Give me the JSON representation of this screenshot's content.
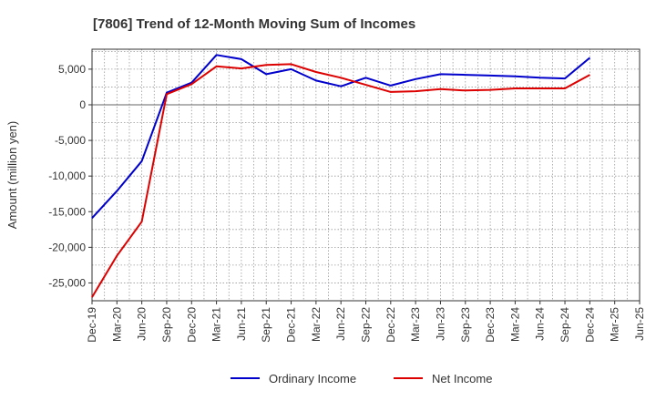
{
  "chart_data": {
    "type": "line",
    "title": "[7806]  Trend of 12-Month Moving Sum of Incomes",
    "xlabel": "",
    "ylabel": "Amount (million yen)",
    "ylim": [
      -27500,
      7800
    ],
    "yticks": [
      5000,
      0,
      -5000,
      -10000,
      -15000,
      -20000,
      -25000
    ],
    "ytick_labels": [
      "5,000",
      "0",
      "-5,000",
      "-10,000",
      "-15,000",
      "-20,000",
      "-25,000"
    ],
    "categories": [
      "Dec-19",
      "Mar-20",
      "Jun-20",
      "Sep-20",
      "Dec-20",
      "Mar-21",
      "Jun-21",
      "Sep-21",
      "Dec-21",
      "Mar-22",
      "Jun-22",
      "Sep-22",
      "Dec-22",
      "Mar-23",
      "Jun-23",
      "Sep-23",
      "Dec-23",
      "Mar-24",
      "Jun-24",
      "Sep-24",
      "Dec-24",
      "Mar-25",
      "Jun-25"
    ],
    "grid": true,
    "legend_position": "bottom",
    "series": [
      {
        "name": "Ordinary Income",
        "color": "#0000cc",
        "values": [
          -15900,
          -12100,
          -7900,
          1700,
          3100,
          7000,
          6400,
          4300,
          5000,
          3400,
          2600,
          3800,
          2700,
          3600,
          4300,
          4200,
          4100,
          4000,
          3800,
          3700,
          6600,
          null,
          null
        ]
      },
      {
        "name": "Net Income",
        "color": "#dd0000",
        "values": [
          -27000,
          -21200,
          -16400,
          1500,
          2900,
          5400,
          5100,
          5600,
          5700,
          4600,
          3800,
          2800,
          1800,
          1900,
          2200,
          2000,
          2100,
          2300,
          2300,
          2300,
          4200,
          null,
          null
        ]
      }
    ]
  }
}
